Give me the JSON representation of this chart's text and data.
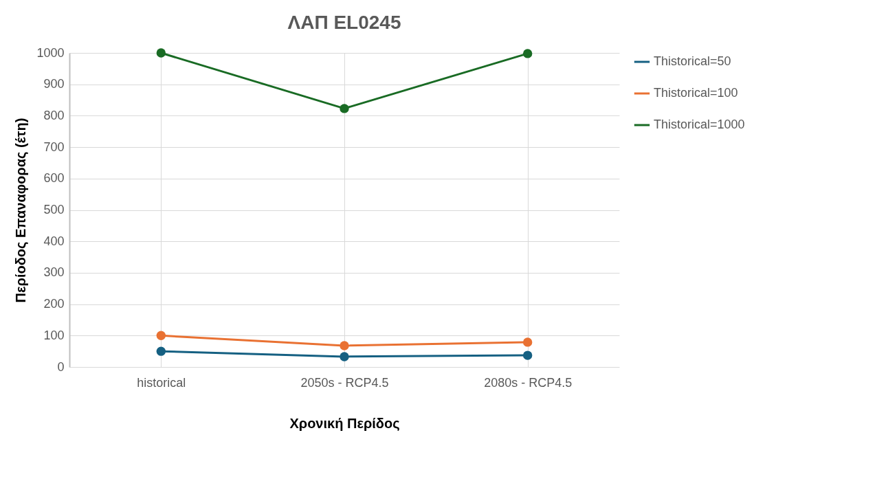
{
  "chart_data": {
    "type": "line",
    "title": "ΛΑΠ EL0245",
    "xlabel": "Χρονική Περίδος",
    "ylabel": "Περίοδος Επαναφορας (έτη)",
    "categories": [
      "historical",
      "2050s - RCP4.5",
      "2080s - RCP4.5"
    ],
    "series": [
      {
        "name": "Thistorical=50",
        "color": "#156082",
        "values": [
          50,
          33,
          37
        ]
      },
      {
        "name": "Thistorical=100",
        "color": "#e97132",
        "values": [
          100,
          68,
          79
        ]
      },
      {
        "name": "Thistorical=1000",
        "color": "#196b24",
        "values": [
          1000,
          823,
          998
        ]
      }
    ],
    "ylim": [
      0,
      1000
    ],
    "yticks": [
      0,
      100,
      200,
      300,
      400,
      500,
      600,
      700,
      800,
      900,
      1000
    ],
    "grid": true,
    "legend": "right",
    "marker": "circle"
  }
}
